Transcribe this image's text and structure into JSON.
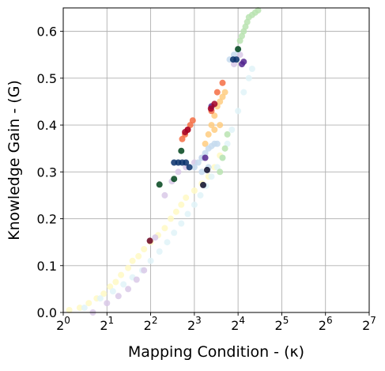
{
  "chart_data": {
    "type": "scatter",
    "title": "",
    "xlabel": "Mapping Condition - (κ)",
    "ylabel": "Knowledge Gain - (G)",
    "x_scale": "log2",
    "xlim": [
      1,
      128
    ],
    "ylim": [
      0,
      0.65
    ],
    "x_ticks": [
      {
        "base": "2",
        "exp": "0"
      },
      {
        "base": "2",
        "exp": "1"
      },
      {
        "base": "2",
        "exp": "2"
      },
      {
        "base": "2",
        "exp": "3"
      },
      {
        "base": "2",
        "exp": "4"
      },
      {
        "base": "2",
        "exp": "5"
      },
      {
        "base": "2",
        "exp": "6"
      },
      {
        "base": "2",
        "exp": "7"
      }
    ],
    "y_ticks": [
      "0.0",
      "0.1",
      "0.2",
      "0.3",
      "0.4",
      "0.5",
      "0.6"
    ],
    "grid": true,
    "legend": "none",
    "series": [
      {
        "color": "#fff9c4",
        "points": [
          [
            1.1,
            0.005
          ],
          [
            1.3,
            0.01
          ],
          [
            1.5,
            0.02
          ],
          [
            1.7,
            0.03
          ],
          [
            1.9,
            0.04
          ],
          [
            2.1,
            0.055
          ],
          [
            2.3,
            0.065
          ],
          [
            2.5,
            0.08
          ],
          [
            2.8,
            0.095
          ],
          [
            3.0,
            0.11
          ],
          [
            3.3,
            0.12
          ],
          [
            3.6,
            0.135
          ],
          [
            4.0,
            0.15
          ],
          [
            4.5,
            0.165
          ],
          [
            5.0,
            0.18
          ],
          [
            5.5,
            0.2
          ],
          [
            6.0,
            0.215
          ],
          [
            6.5,
            0.23
          ],
          [
            7.0,
            0.245
          ],
          [
            8.0,
            0.26
          ],
          [
            9.0,
            0.275
          ],
          [
            10.0,
            0.29
          ],
          [
            11.0,
            0.31
          ],
          [
            12.0,
            0.335
          ]
        ]
      },
      {
        "color": "#e0f3f8",
        "points": [
          [
            1.4,
            0.01
          ],
          [
            1.8,
            0.03
          ],
          [
            2.2,
            0.045
          ],
          [
            2.6,
            0.06
          ],
          [
            3.0,
            0.075
          ],
          [
            3.5,
            0.09
          ],
          [
            4.0,
            0.11
          ],
          [
            4.6,
            0.13
          ],
          [
            5.2,
            0.15
          ],
          [
            5.8,
            0.17
          ],
          [
            6.5,
            0.19
          ],
          [
            7.2,
            0.21
          ],
          [
            8.0,
            0.23
          ],
          [
            8.8,
            0.25
          ],
          [
            9.6,
            0.27
          ],
          [
            10.5,
            0.29
          ],
          [
            11.5,
            0.31
          ],
          [
            12.5,
            0.33
          ],
          [
            13.5,
            0.36
          ],
          [
            14.5,
            0.39
          ],
          [
            16.0,
            0.43
          ],
          [
            17.5,
            0.47
          ],
          [
            19.0,
            0.5
          ],
          [
            20.0,
            0.52
          ]
        ]
      },
      {
        "color": "#d9c9e8",
        "points": [
          [
            1.6,
            0.0
          ],
          [
            2.0,
            0.02
          ],
          [
            2.4,
            0.035
          ],
          [
            2.8,
            0.05
          ],
          [
            3.2,
            0.07
          ],
          [
            3.6,
            0.09
          ],
          [
            4.3,
            0.16
          ],
          [
            5.0,
            0.25
          ],
          [
            5.6,
            0.28
          ],
          [
            6.2,
            0.3
          ],
          [
            7.0,
            0.31
          ],
          [
            8.0,
            0.32
          ],
          [
            9.0,
            0.33
          ],
          [
            15.0,
            0.53
          ],
          [
            16.5,
            0.55
          ]
        ]
      },
      {
        "color": "#b8e3b0",
        "points": [
          [
            16.5,
            0.58
          ],
          [
            17.0,
            0.59
          ],
          [
            17.5,
            0.6
          ],
          [
            18.0,
            0.61
          ],
          [
            18.5,
            0.62
          ],
          [
            19.0,
            0.63
          ],
          [
            20.0,
            0.635
          ],
          [
            21.0,
            0.64
          ],
          [
            22.0,
            0.645
          ],
          [
            12.0,
            0.3
          ],
          [
            12.5,
            0.33
          ],
          [
            13.0,
            0.35
          ],
          [
            13.5,
            0.38
          ]
        ]
      },
      {
        "color": "#ffcc80",
        "points": [
          [
            9.5,
            0.36
          ],
          [
            10.0,
            0.38
          ],
          [
            10.5,
            0.4
          ],
          [
            11.0,
            0.42
          ],
          [
            11.5,
            0.44
          ],
          [
            12.0,
            0.45
          ],
          [
            12.5,
            0.46
          ],
          [
            13.0,
            0.47
          ],
          [
            12.0,
            0.4
          ],
          [
            11.0,
            0.39
          ]
        ]
      },
      {
        "color": "#f46d43",
        "points": [
          [
            6.6,
            0.37
          ],
          [
            6.9,
            0.38
          ],
          [
            7.2,
            0.39
          ],
          [
            7.5,
            0.4
          ],
          [
            7.8,
            0.41
          ],
          [
            10.5,
            0.43
          ],
          [
            11.5,
            0.47
          ],
          [
            12.5,
            0.49
          ]
        ]
      },
      {
        "color": "#c6dbef",
        "points": [
          [
            8.0,
            0.31
          ],
          [
            8.5,
            0.32
          ],
          [
            9.0,
            0.33
          ],
          [
            9.5,
            0.34
          ],
          [
            10.0,
            0.35
          ],
          [
            10.5,
            0.355
          ],
          [
            11.0,
            0.36
          ],
          [
            11.5,
            0.36
          ],
          [
            9.0,
            0.3
          ],
          [
            10.0,
            0.31
          ],
          [
            14.0,
            0.54
          ],
          [
            15.0,
            0.55
          ],
          [
            16.0,
            0.56
          ]
        ]
      },
      {
        "color": "#08306b",
        "points": [
          [
            5.8,
            0.32
          ],
          [
            6.2,
            0.32
          ],
          [
            6.6,
            0.32
          ],
          [
            7.0,
            0.32
          ],
          [
            7.4,
            0.31
          ],
          [
            14.8,
            0.54
          ],
          [
            15.6,
            0.54
          ]
        ]
      },
      {
        "color": "#54278f",
        "points": [
          [
            17.0,
            0.53
          ],
          [
            17.5,
            0.535
          ],
          [
            9.5,
            0.33
          ],
          [
            10.5,
            0.44
          ]
        ]
      },
      {
        "color": "#a50026",
        "points": [
          [
            6.9,
            0.385
          ],
          [
            7.2,
            0.39
          ],
          [
            10.4,
            0.435
          ],
          [
            11.0,
            0.445
          ]
        ]
      },
      {
        "color": "#00441b",
        "points": [
          [
            4.6,
            0.273
          ],
          [
            5.8,
            0.285
          ],
          [
            6.5,
            0.345
          ],
          [
            16.0,
            0.562
          ]
        ]
      },
      {
        "color": "#67001f",
        "points": [
          [
            3.95,
            0.153
          ]
        ]
      },
      {
        "color": "#0b0b2a",
        "points": [
          [
            9.2,
            0.272
          ],
          [
            9.8,
            0.304
          ]
        ]
      }
    ]
  }
}
